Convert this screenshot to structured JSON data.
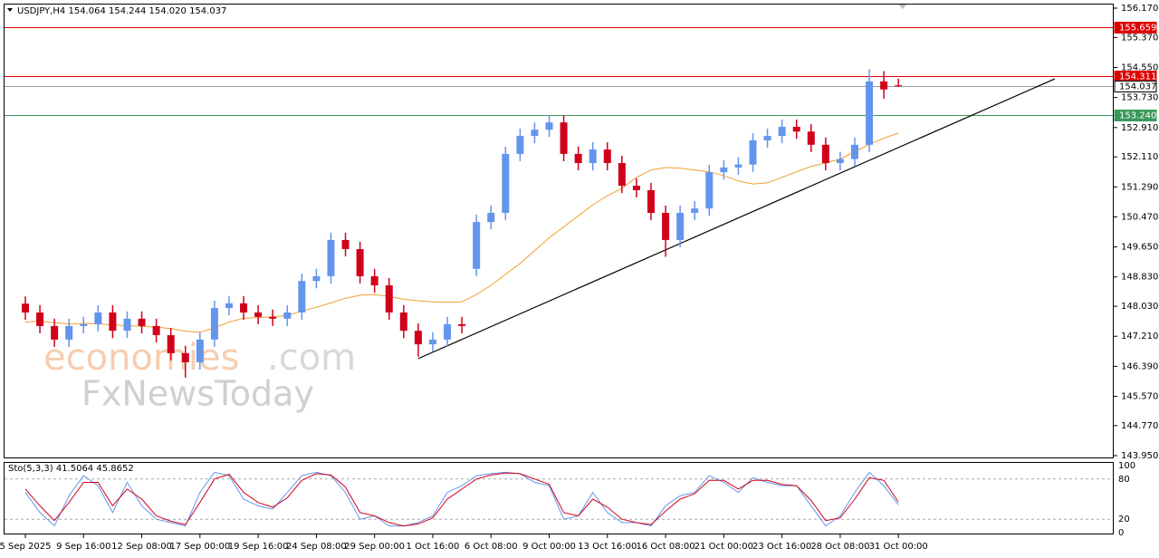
{
  "chart_data": [
    {
      "type": "candlestick",
      "title": "USDJPY,H4 154.064 154.244 154.020 154.037",
      "categories": [
        "5 Sep 2025",
        null,
        null,
        null,
        "9 Sep 16:00",
        null,
        null,
        null,
        "12 Sep 08:00",
        null,
        null,
        null,
        "17 Sep 00:00",
        null,
        null,
        null,
        "19 Sep 16:00",
        null,
        null,
        null,
        "24 Sep 08:00",
        null,
        null,
        null,
        "29 Sep 00:00",
        null,
        null,
        null,
        "1 Oct 16:00",
        null,
        null,
        null,
        "6 Oct 08:00",
        null,
        null,
        null,
        "9 Oct 00:00",
        null,
        null,
        null,
        "13 Oct 16:00",
        null,
        null,
        null,
        "16 Oct 08:00",
        null,
        null,
        null,
        "21 Oct 00:00",
        null,
        null,
        null,
        "23 Oct 16:00",
        null,
        null,
        null,
        "28 Oct 08:00",
        null,
        null,
        null,
        "31 Oct 00:00"
      ],
      "open": [
        148.1,
        147.86,
        147.49,
        147.12,
        147.49,
        147.54,
        147.86,
        147.36,
        147.69,
        147.49,
        147.24,
        146.75,
        146.5,
        147.12,
        147.98,
        148.11,
        147.86,
        147.74,
        147.69,
        147.86,
        148.72,
        148.85,
        149.84,
        149.59,
        148.85,
        148.6,
        147.86,
        147.36,
        146.99,
        147.12,
        147.54,
        149.05,
        150.33,
        150.58,
        152.19,
        152.68,
        152.85,
        153.05,
        152.19,
        151.94,
        152.31,
        151.94,
        151.32,
        151.2,
        150.58,
        149.84,
        150.58,
        150.7,
        151.69,
        151.82,
        151.9,
        152.56,
        152.68,
        152.93,
        152.8,
        152.44,
        151.94,
        152.05,
        152.44,
        154.17,
        154.064
      ],
      "high": [
        148.3,
        148.06,
        147.69,
        147.69,
        147.74,
        148.06,
        148.06,
        147.89,
        147.89,
        147.69,
        147.44,
        146.95,
        147.32,
        148.18,
        148.31,
        148.31,
        148.06,
        147.94,
        148.06,
        148.92,
        149.05,
        150.04,
        150.04,
        149.79,
        149.05,
        148.8,
        148.06,
        147.56,
        147.32,
        147.74,
        147.74,
        150.53,
        150.78,
        152.39,
        152.88,
        153.05,
        153.25,
        153.25,
        152.39,
        152.51,
        152.51,
        152.14,
        151.52,
        151.4,
        150.78,
        150.78,
        150.9,
        151.89,
        152.02,
        152.1,
        152.76,
        152.88,
        153.13,
        153.13,
        153.0,
        152.64,
        152.25,
        152.64,
        154.5,
        154.45,
        154.244
      ],
      "low": [
        147.66,
        147.29,
        146.92,
        146.92,
        147.29,
        147.34,
        147.16,
        147.16,
        147.29,
        147.04,
        146.55,
        146.08,
        146.3,
        146.92,
        147.78,
        147.66,
        147.54,
        147.49,
        147.49,
        147.66,
        148.52,
        148.65,
        149.39,
        148.65,
        148.4,
        147.66,
        147.16,
        146.65,
        146.79,
        146.92,
        147.29,
        148.85,
        150.13,
        150.38,
        151.99,
        152.48,
        152.65,
        151.99,
        151.74,
        151.74,
        151.74,
        151.12,
        151.0,
        150.38,
        149.38,
        149.64,
        150.38,
        150.5,
        151.49,
        151.62,
        151.7,
        152.36,
        152.48,
        152.6,
        152.24,
        151.74,
        151.74,
        151.85,
        152.24,
        153.7,
        154.02
      ],
      "close": [
        147.86,
        147.49,
        147.12,
        147.49,
        147.54,
        147.86,
        147.36,
        147.69,
        147.49,
        147.24,
        146.75,
        146.5,
        147.12,
        147.98,
        148.11,
        147.86,
        147.74,
        147.69,
        147.86,
        148.72,
        148.85,
        149.84,
        149.59,
        148.85,
        148.6,
        147.86,
        147.36,
        146.99,
        147.12,
        147.54,
        147.49,
        150.33,
        150.58,
        152.19,
        152.68,
        152.85,
        153.05,
        152.19,
        151.94,
        152.31,
        151.94,
        151.32,
        151.2,
        150.58,
        149.84,
        150.58,
        150.7,
        151.69,
        151.82,
        151.9,
        152.56,
        152.68,
        152.93,
        152.8,
        152.44,
        151.94,
        152.05,
        152.44,
        154.17,
        153.95,
        154.037
      ],
      "up_color": "#6495ed",
      "down_color": "#d0021b",
      "ylim": [
        143.876,
        156.294
      ],
      "yticks": [
        {
          "value": 156.17,
          "label": "156.170"
        },
        {
          "value": 155.37,
          "label": "155.370"
        },
        {
          "value": 154.55,
          "label": "154.550"
        },
        {
          "value": 153.73,
          "label": "153.730"
        },
        {
          "value": 152.91,
          "label": "152.910"
        },
        {
          "value": 152.11,
          "label": "152.110"
        },
        {
          "value": 151.29,
          "label": "151.290"
        },
        {
          "value": 150.47,
          "label": "150.470"
        },
        {
          "value": 149.65,
          "label": "149.650"
        },
        {
          "value": 148.83,
          "label": "148.830"
        },
        {
          "value": 148.03,
          "label": "148.030"
        },
        {
          "value": 147.21,
          "label": "147.210"
        },
        {
          "value": 146.39,
          "label": "146.390"
        },
        {
          "value": 145.57,
          "label": "145.570"
        },
        {
          "value": 144.77,
          "label": "144.770"
        },
        {
          "value": 143.95,
          "label": "143.950"
        }
      ],
      "series": [
        {
          "color": "#f0a030",
          "values": [
            147.6,
            147.62,
            147.58,
            147.55,
            147.56,
            147.55,
            147.52,
            147.5,
            147.48,
            147.46,
            147.42,
            147.35,
            147.32,
            147.44,
            147.6,
            147.7,
            147.72,
            147.74,
            147.78,
            147.9,
            148.0,
            148.12,
            148.25,
            148.33,
            148.35,
            148.3,
            148.22,
            148.18,
            148.15,
            148.14,
            148.15,
            148.35,
            148.6,
            148.9,
            149.2,
            149.55,
            149.9,
            150.2,
            150.5,
            150.8,
            151.05,
            151.25,
            151.55,
            151.75,
            151.82,
            151.8,
            151.75,
            151.7,
            151.6,
            151.45,
            151.37,
            151.4,
            151.55,
            151.7,
            151.85,
            151.94,
            152.05,
            152.25,
            152.45,
            152.62,
            152.76
          ]
        }
      ],
      "levels": [
        {
          "value": 155.659,
          "color": "#e00000"
        },
        {
          "value": 154.311,
          "color": "#e00000"
        },
        {
          "value": 154.037,
          "color": "#9a9a9a"
        },
        {
          "value": 153.24,
          "label": "153.240",
          "color": "#3a9a5a"
        }
      ],
      "trendline": {
        "x": [
          27,
          70.75
        ],
        "y": [
          146.6,
          154.24
        ],
        "color": "#000000"
      },
      "watermark": [
        "economies",
        ".com",
        "FxNewsToday"
      ]
    },
    {
      "type": "line",
      "title": "Sto(5,3,3) 41.5064 45.8652",
      "ylim": [
        0,
        100
      ],
      "yticks": [
        0,
        20,
        80,
        100
      ],
      "series": [
        {
          "color": "#6495ed",
          "values": [
            60,
            30,
            10,
            55,
            85,
            70,
            30,
            75,
            40,
            20,
            15,
            10,
            60,
            90,
            85,
            50,
            40,
            35,
            60,
            85,
            90,
            85,
            60,
            20,
            25,
            10,
            10,
            15,
            25,
            60,
            70,
            85,
            88,
            90,
            88,
            75,
            70,
            20,
            25,
            60,
            30,
            15,
            15,
            10,
            40,
            55,
            60,
            85,
            75,
            60,
            82,
            75,
            70,
            70,
            40,
            10,
            25,
            60,
            90,
            70,
            41.5064
          ]
        },
        {
          "color": "#d0021b",
          "values": [
            65,
            40,
            18,
            45,
            75,
            75,
            40,
            65,
            50,
            25,
            17,
            12,
            45,
            80,
            87,
            60,
            45,
            38,
            52,
            78,
            88,
            86,
            68,
            30,
            25,
            15,
            10,
            13,
            22,
            50,
            65,
            80,
            86,
            89,
            88,
            80,
            72,
            30,
            25,
            50,
            38,
            20,
            15,
            12,
            32,
            50,
            58,
            78,
            78,
            65,
            78,
            78,
            72,
            70,
            48,
            18,
            22,
            50,
            82,
            78,
            45.8652
          ]
        }
      ]
    }
  ]
}
